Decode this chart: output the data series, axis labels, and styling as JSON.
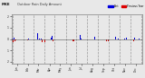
{
  "title": "MKE",
  "title2": "Outdoor Rain Daily Amount",
  "legend_past_label": "Past",
  "legend_prev_label": "Previous Year",
  "legend_color_past": "#0000dd",
  "legend_color_prev": "#dd0000",
  "background_color": "#e8e8e8",
  "bar_color_past": "#0000cc",
  "bar_color_prev": "#cc0000",
  "grid_color": "#999999",
  "n_days": 365,
  "seed": 123,
  "ylim_min": -2.2,
  "ylim_max": 2.2
}
